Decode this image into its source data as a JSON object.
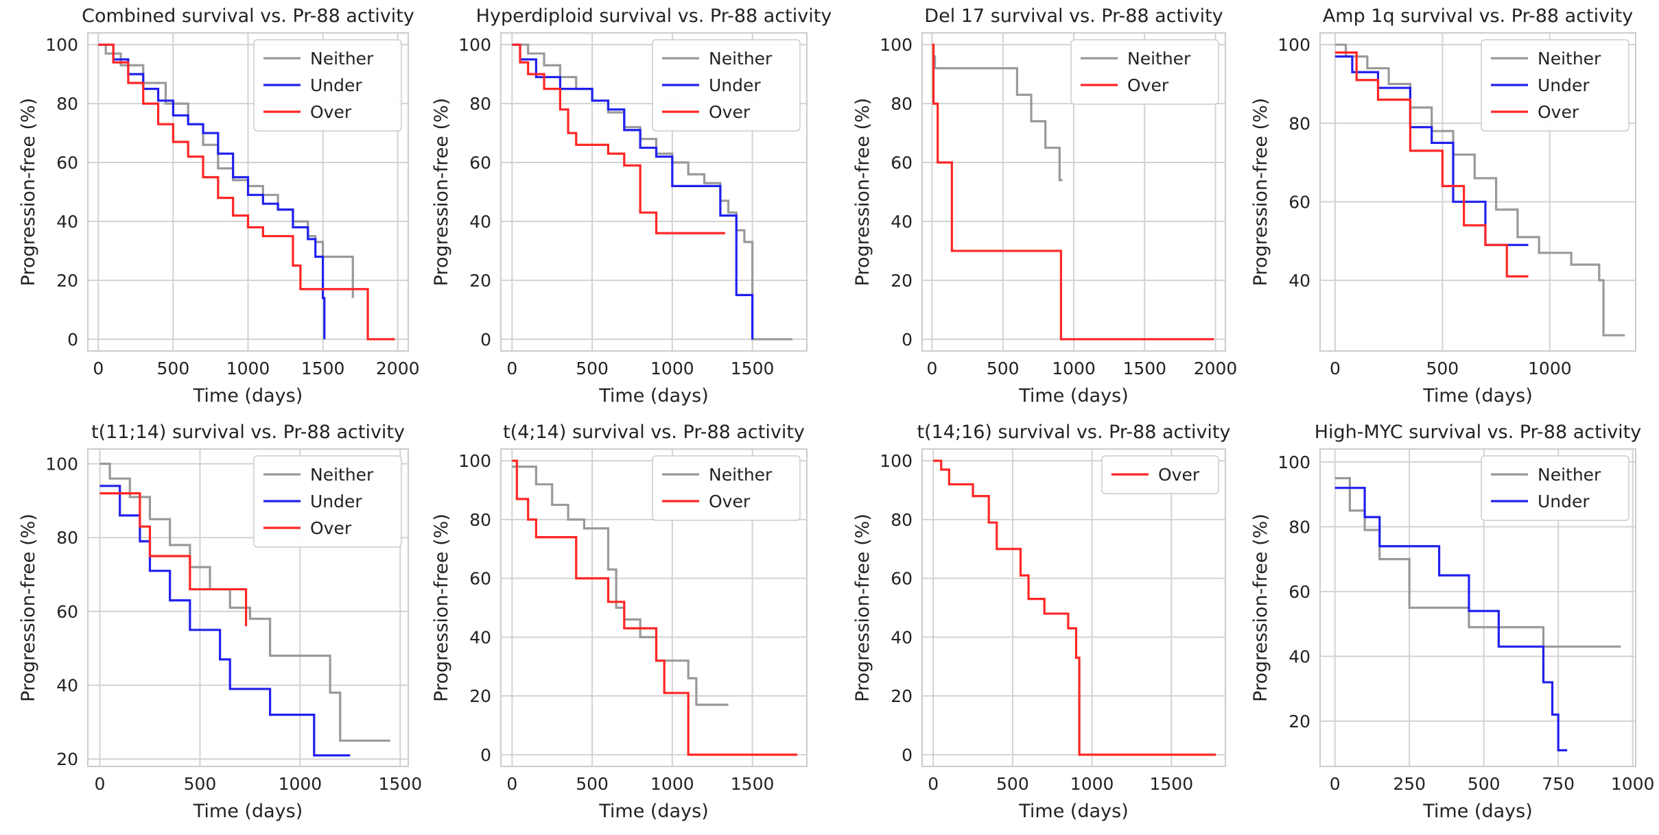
{
  "colors": {
    "Neither": "#999999",
    "Under": "#2020ee",
    "Over": "#ff2525",
    "grid": "#d2d2d2",
    "frame": "#cccccc"
  },
  "chart_data": [
    {
      "type": "line",
      "step": true,
      "title": "Combined survival vs. Pr-88 activity",
      "xlabel": "Time (days)",
      "ylabel": "Progression-free (%)",
      "xlim": [
        -70,
        2070
      ],
      "ylim": [
        -4,
        104
      ],
      "xticks": [
        0,
        500,
        1000,
        1500,
        2000
      ],
      "yticks": [
        0,
        20,
        40,
        60,
        80,
        100
      ],
      "legend": "top-right",
      "series": [
        {
          "name": "Neither",
          "x": [
            0,
            50,
            150,
            300,
            450,
            600,
            700,
            800,
            900,
            1000,
            1100,
            1200,
            1300,
            1400,
            1450,
            1500,
            1700
          ],
          "y": [
            100,
            97,
            93,
            87,
            80,
            73,
            66,
            58,
            54,
            52,
            49,
            44,
            40,
            35,
            33,
            28,
            14
          ]
        },
        {
          "name": "Under",
          "x": [
            0,
            100,
            200,
            300,
            400,
            500,
            600,
            700,
            800,
            900,
            1000,
            1100,
            1200,
            1300,
            1400,
            1450,
            1500,
            1510
          ],
          "y": [
            100,
            95,
            90,
            85,
            81,
            76,
            73,
            70,
            63,
            55,
            49,
            46,
            44,
            38,
            34,
            28,
            14,
            0
          ]
        },
        {
          "name": "Over",
          "x": [
            0,
            100,
            200,
            300,
            400,
            500,
            600,
            700,
            800,
            900,
            1000,
            1100,
            1300,
            1350,
            1800,
            1980
          ],
          "y": [
            100,
            94,
            87,
            80,
            73,
            67,
            62,
            55,
            48,
            42,
            38,
            35,
            25,
            17,
            0,
            0
          ]
        }
      ]
    },
    {
      "type": "line",
      "step": true,
      "title": "Hyperdiploid survival vs. Pr-88 activity",
      "xlabel": "Time (days)",
      "ylabel": "Progression-free (%)",
      "xlim": [
        -70,
        1840
      ],
      "ylim": [
        -4,
        104
      ],
      "xticks": [
        0,
        500,
        1000,
        1500
      ],
      "yticks": [
        0,
        20,
        40,
        60,
        80,
        100
      ],
      "legend": "top-right",
      "series": [
        {
          "name": "Neither",
          "x": [
            0,
            100,
            200,
            300,
            400,
            500,
            600,
            700,
            800,
            900,
            1000,
            1100,
            1200,
            1300,
            1350,
            1400,
            1450,
            1500,
            1750
          ],
          "y": [
            100,
            97,
            93,
            89,
            85,
            81,
            77,
            72,
            68,
            63,
            60,
            56,
            53,
            47,
            43,
            37,
            33,
            0,
            0
          ]
        },
        {
          "name": "Under",
          "x": [
            0,
            50,
            150,
            300,
            500,
            600,
            700,
            800,
            900,
            1000,
            1100,
            1300,
            1400,
            1450,
            1500
          ],
          "y": [
            100,
            95,
            89,
            85,
            81,
            78,
            71,
            65,
            62,
            52,
            52,
            42,
            15,
            15,
            0
          ]
        },
        {
          "name": "Over",
          "x": [
            0,
            50,
            100,
            200,
            300,
            350,
            400,
            450,
            600,
            700,
            800,
            900,
            1000,
            1330
          ],
          "y": [
            100,
            94,
            90,
            85,
            78,
            70,
            66,
            66,
            63,
            59,
            43,
            36,
            36,
            36
          ]
        }
      ]
    },
    {
      "type": "line",
      "step": true,
      "title": "Del 17 survival vs. Pr-88 activity",
      "xlabel": "Time (days)",
      "ylabel": "Progression-free (%)",
      "xlim": [
        -70,
        2070
      ],
      "ylim": [
        -4,
        104
      ],
      "xticks": [
        0,
        500,
        1000,
        1500,
        2000
      ],
      "yticks": [
        0,
        20,
        40,
        60,
        80,
        100
      ],
      "legend": "top-right",
      "series": [
        {
          "name": "Neither",
          "x": [
            0,
            10,
            20,
            350,
            600,
            700,
            800,
            900,
            920
          ],
          "y": [
            100,
            96,
            92,
            92,
            83,
            74,
            65,
            54,
            54
          ]
        },
        {
          "name": "Over",
          "x": [
            0,
            10,
            40,
            140,
            910,
            1990
          ],
          "y": [
            100,
            80,
            60,
            30,
            0,
            0
          ]
        }
      ]
    },
    {
      "type": "line",
      "step": true,
      "title": "Amp 1q survival vs. Pr-88 activity",
      "xlabel": "Time (days)",
      "ylabel": "Progression-free (%)",
      "xlim": [
        -70,
        1400
      ],
      "ylim": [
        22,
        103
      ],
      "xticks": [
        0,
        500,
        1000
      ],
      "yticks": [
        40,
        60,
        80,
        100
      ],
      "legend": "top-right",
      "series": [
        {
          "name": "Neither",
          "x": [
            0,
            50,
            150,
            250,
            350,
            450,
            550,
            650,
            750,
            850,
            950,
            1100,
            1230,
            1250,
            1350
          ],
          "y": [
            100,
            97,
            94,
            90,
            84,
            78,
            72,
            66,
            58,
            51,
            47,
            44,
            40,
            26,
            26
          ]
        },
        {
          "name": "Under",
          "x": [
            0,
            80,
            200,
            350,
            450,
            550,
            700,
            900
          ],
          "y": [
            97,
            93,
            89,
            79,
            75,
            60,
            49,
            49
          ]
        },
        {
          "name": "Over",
          "x": [
            0,
            100,
            200,
            350,
            500,
            600,
            700,
            800,
            900
          ],
          "y": [
            98,
            91,
            86,
            73,
            64,
            54,
            49,
            41,
            41
          ]
        }
      ]
    },
    {
      "type": "line",
      "step": true,
      "title": "t(11;14) survival vs. Pr-88 activity",
      "xlabel": "Time (days)",
      "ylabel": "Progression-free (%)",
      "xlim": [
        -60,
        1540
      ],
      "ylim": [
        18,
        104
      ],
      "xticks": [
        0,
        500,
        1000,
        1500
      ],
      "yticks": [
        20,
        40,
        60,
        80,
        100
      ],
      "legend": "top-right",
      "series": [
        {
          "name": "Neither",
          "x": [
            0,
            50,
            150,
            250,
            350,
            450,
            550,
            650,
            750,
            850,
            1150,
            1200,
            1450
          ],
          "y": [
            100,
            96,
            91,
            85,
            78,
            72,
            66,
            61,
            58,
            48,
            38,
            25,
            25
          ]
        },
        {
          "name": "Under",
          "x": [
            0,
            100,
            200,
            250,
            350,
            450,
            600,
            650,
            850,
            1070,
            1250
          ],
          "y": [
            94,
            86,
            79,
            71,
            63,
            55,
            47,
            39,
            32,
            21,
            21
          ]
        },
        {
          "name": "Over",
          "x": [
            0,
            200,
            250,
            450,
            500,
            730
          ],
          "y": [
            92,
            83,
            75,
            66,
            66,
            56
          ]
        }
      ]
    },
    {
      "type": "line",
      "step": true,
      "title": "t(4;14) survival vs. Pr-88 activity",
      "xlabel": "Time (days)",
      "ylabel": "Progression-free (%)",
      "xlim": [
        -70,
        1840
      ],
      "ylim": [
        -4,
        104
      ],
      "xticks": [
        0,
        500,
        1000,
        1500
      ],
      "yticks": [
        0,
        20,
        40,
        60,
        80,
        100
      ],
      "legend": "top-right",
      "series": [
        {
          "name": "Neither",
          "x": [
            0,
            150,
            250,
            350,
            450,
            600,
            650,
            700,
            800,
            900,
            1100,
            1150,
            1350
          ],
          "y": [
            98,
            92,
            85,
            80,
            77,
            63,
            50,
            46,
            40,
            32,
            26,
            17,
            17
          ]
        },
        {
          "name": "Over",
          "x": [
            0,
            30,
            100,
            150,
            400,
            600,
            700,
            900,
            950,
            1100,
            1780
          ],
          "y": [
            100,
            87,
            80,
            74,
            60,
            52,
            43,
            32,
            21,
            0,
            0
          ]
        }
      ]
    },
    {
      "type": "line",
      "step": true,
      "title": "t(14;16) survival vs. Pr-88 activity",
      "xlabel": "Time (days)",
      "ylabel": "Progression-free (%)",
      "xlim": [
        -70,
        1840
      ],
      "ylim": [
        -4,
        104
      ],
      "xticks": [
        0,
        500,
        1000,
        1500
      ],
      "yticks": [
        0,
        20,
        40,
        60,
        80,
        100
      ],
      "legend": "top-right",
      "series": [
        {
          "name": "Over",
          "x": [
            0,
            50,
            100,
            250,
            350,
            400,
            550,
            600,
            700,
            850,
            900,
            920,
            1780
          ],
          "y": [
            100,
            97,
            92,
            88,
            79,
            70,
            61,
            53,
            48,
            43,
            33,
            0,
            0
          ]
        }
      ]
    },
    {
      "type": "line",
      "step": true,
      "title": "High-MYC survival vs. Pr-88 activity",
      "xlabel": "Time (days)",
      "ylabel": "Progression-free (%)",
      "xlim": [
        -50,
        1010
      ],
      "ylim": [
        6,
        104
      ],
      "xticks": [
        0,
        250,
        500,
        750,
        1000
      ],
      "yticks": [
        20,
        40,
        60,
        80,
        100
      ],
      "legend": "top-right",
      "series": [
        {
          "name": "Neither",
          "x": [
            0,
            50,
            100,
            150,
            250,
            450,
            700,
            960
          ],
          "y": [
            95,
            85,
            79,
            70,
            55,
            49,
            43,
            43
          ]
        },
        {
          "name": "Under",
          "x": [
            0,
            100,
            150,
            350,
            450,
            550,
            700,
            730,
            750,
            780
          ],
          "y": [
            92,
            83,
            74,
            65,
            54,
            43,
            32,
            22,
            11,
            11
          ]
        }
      ]
    }
  ]
}
